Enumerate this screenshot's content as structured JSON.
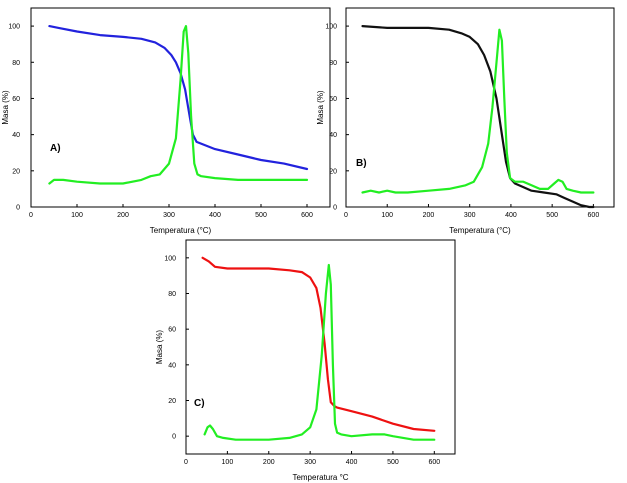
{
  "chart_data": [
    {
      "id": "A",
      "type": "line",
      "panel_label": "A)",
      "xlabel": "Temperatura (°C)",
      "ylabel": "Masa (%)",
      "xlim": [
        0,
        650
      ],
      "ylim": [
        0,
        110
      ],
      "xticks": [
        0,
        100,
        200,
        300,
        400,
        500,
        600
      ],
      "yticks": [
        0,
        20,
        40,
        60,
        80,
        100
      ],
      "series": [
        {
          "color": "#2222dd",
          "x": [
            40,
            60,
            100,
            150,
            200,
            240,
            270,
            290,
            305,
            315,
            325,
            335,
            345,
            352,
            360,
            380,
            400,
            450,
            500,
            550,
            600
          ],
          "y": [
            100,
            99,
            97,
            95,
            94,
            93,
            91,
            88,
            84,
            80,
            74,
            65,
            50,
            40,
            36,
            34,
            32,
            29,
            26,
            24,
            21
          ]
        },
        {
          "color": "#22ee22",
          "x": [
            40,
            50,
            70,
            100,
            150,
            200,
            240,
            260,
            280,
            300,
            315,
            325,
            332,
            337,
            342,
            348,
            355,
            362,
            370,
            400,
            450,
            500,
            550,
            600
          ],
          "y": [
            13,
            15,
            15,
            14,
            13,
            13,
            15,
            17,
            18,
            24,
            38,
            70,
            97,
            100,
            85,
            50,
            24,
            18,
            17,
            16,
            15,
            15,
            15,
            15
          ]
        }
      ]
    },
    {
      "id": "B",
      "type": "line",
      "panel_label": "B)",
      "xlabel": "Temperatura (°C)",
      "ylabel": "Masa (%)",
      "xlim": [
        0,
        650
      ],
      "ylim": [
        0,
        110
      ],
      "xticks": [
        0,
        100,
        200,
        300,
        400,
        500,
        600
      ],
      "yticks": [
        0,
        20,
        40,
        60,
        80,
        100
      ],
      "series": [
        {
          "color": "#111111",
          "x": [
            40,
            100,
            150,
            200,
            250,
            280,
            300,
            320,
            335,
            350,
            365,
            378,
            388,
            398,
            410,
            430,
            450,
            480,
            510,
            530,
            550,
            570,
            590,
            600
          ],
          "y": [
            100,
            99,
            99,
            99,
            98,
            96,
            94,
            90,
            84,
            75,
            60,
            40,
            25,
            16,
            13,
            11,
            9,
            8,
            7,
            5,
            3,
            1,
            0,
            0
          ]
        },
        {
          "color": "#22ee22",
          "x": [
            40,
            60,
            80,
            100,
            120,
            150,
            200,
            250,
            290,
            310,
            330,
            345,
            355,
            365,
            372,
            378,
            384,
            390,
            398,
            410,
            430,
            450,
            470,
            490,
            505,
            515,
            525,
            535,
            550,
            570,
            600
          ],
          "y": [
            8,
            9,
            8,
            9,
            8,
            8,
            9,
            10,
            12,
            14,
            22,
            35,
            55,
            80,
            98,
            92,
            60,
            30,
            16,
            14,
            14,
            12,
            10,
            10,
            13,
            15,
            14,
            10,
            9,
            8,
            8
          ]
        }
      ]
    },
    {
      "id": "C",
      "type": "line",
      "panel_label": "C)",
      "xlabel": "Temperatura °C",
      "ylabel": "Masa (%)",
      "xlim": [
        0,
        650
      ],
      "ylim": [
        -10,
        110
      ],
      "xticks": [
        0,
        100,
        200,
        300,
        400,
        500,
        600
      ],
      "yticks": [
        0,
        20,
        40,
        60,
        80,
        100
      ],
      "series": [
        {
          "color": "#ee1111",
          "x": [
            40,
            55,
            70,
            100,
            150,
            200,
            250,
            280,
            300,
            315,
            325,
            335,
            343,
            350,
            358,
            365,
            400,
            450,
            500,
            550,
            600
          ],
          "y": [
            100,
            98,
            95,
            94,
            94,
            94,
            93,
            92,
            89,
            83,
            72,
            52,
            32,
            19,
            17,
            16,
            14,
            11,
            7,
            4,
            3
          ]
        },
        {
          "color": "#22ee22",
          "x": [
            45,
            52,
            58,
            65,
            75,
            90,
            120,
            200,
            250,
            280,
            300,
            315,
            328,
            338,
            345,
            350,
            355,
            360,
            365,
            375,
            400,
            450,
            480,
            500,
            550,
            600
          ],
          "y": [
            1,
            5,
            6,
            4,
            0,
            -1,
            -2,
            -2,
            -1,
            1,
            5,
            15,
            45,
            80,
            96,
            85,
            40,
            7,
            2,
            1,
            0,
            1,
            1,
            0,
            -2,
            -2
          ]
        }
      ]
    }
  ]
}
